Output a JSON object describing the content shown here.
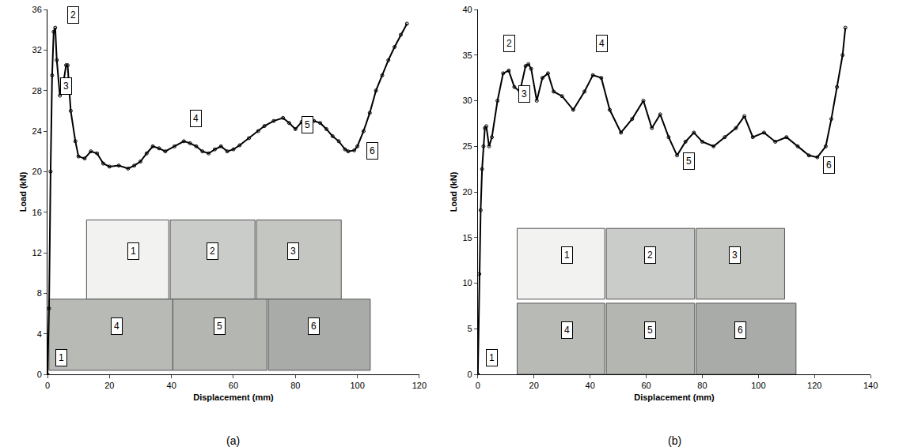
{
  "chart_data": [
    {
      "type": "line",
      "caption": "(a)",
      "x_label": "Displacement (mm)",
      "y_label": "Load (kN)",
      "color": "#000000",
      "marker": "circle",
      "line_style": "solid",
      "grid": false,
      "x": [
        0,
        0.5,
        1,
        1.5,
        2,
        2.5,
        3,
        4,
        5,
        6,
        6.5,
        7.5,
        9,
        10,
        12,
        14,
        16,
        18,
        20,
        23,
        26,
        28,
        30,
        32,
        34,
        36,
        38,
        41,
        44,
        46,
        48,
        50,
        52,
        54,
        56,
        58,
        60,
        62,
        65,
        68,
        70,
        73,
        76,
        78,
        80,
        82,
        84,
        86,
        88,
        90,
        92,
        94,
        96,
        97,
        99,
        100,
        102,
        104,
        106,
        108,
        110,
        112,
        114,
        116
      ],
      "values": [
        0,
        6.5,
        20,
        29.5,
        33.8,
        34.2,
        31,
        27.5,
        28.5,
        30.5,
        30.5,
        26,
        23,
        21.5,
        21.3,
        22,
        21.8,
        20.8,
        20.5,
        20.6,
        20.3,
        20.6,
        21,
        21.8,
        22.5,
        22.3,
        22,
        22.5,
        23,
        22.8,
        22.5,
        22,
        21.8,
        22.2,
        22.5,
        22,
        22.2,
        22.6,
        23.3,
        24,
        24.5,
        25,
        25.3,
        24.8,
        24.2,
        24.9,
        25.2,
        25,
        24.8,
        24.2,
        23.5,
        23,
        22.2,
        22,
        22.1,
        22.5,
        24,
        25.8,
        28,
        29.5,
        31,
        32.3,
        33.5,
        34.6
      ],
      "xlim": [
        0,
        120
      ],
      "xticks": [
        0,
        20,
        40,
        60,
        80,
        100,
        120
      ],
      "ylim": [
        0,
        36
      ],
      "yticks": [
        0,
        4,
        8,
        12,
        16,
        20,
        24,
        28,
        32,
        36
      ],
      "annotations": [
        {
          "text": "1",
          "x": 2.5,
          "y": 0.8
        },
        {
          "text": "2",
          "x": 6.5,
          "y": 34.6
        },
        {
          "text": "3",
          "x": 4,
          "y": 27.6
        },
        {
          "text": "4",
          "x": 46,
          "y": 24.4
        },
        {
          "text": "5",
          "x": 82,
          "y": 23.8
        },
        {
          "text": "6",
          "x": 103,
          "y": 21.2
        }
      ],
      "photo_labels": [
        "1",
        "2",
        "3",
        "4",
        "5",
        "6"
      ]
    },
    {
      "type": "line",
      "caption": "(b)",
      "x_label": "Displacement (mm)",
      "y_label": "Load (kN)",
      "color": "#000000",
      "marker": "circle",
      "line_style": "solid",
      "grid": false,
      "x": [
        0,
        0.5,
        1,
        1.5,
        2,
        2.5,
        3,
        4,
        5,
        7,
        9,
        11,
        13,
        15,
        17,
        18,
        19,
        21,
        23,
        25,
        27,
        30,
        34,
        38,
        41,
        44,
        47,
        51,
        55,
        59,
        62,
        65,
        68,
        71,
        74,
        77,
        80,
        84,
        88,
        92,
        95,
        98,
        102,
        106,
        110,
        114,
        118,
        121,
        124,
        126,
        128,
        130,
        131
      ],
      "values": [
        0,
        11,
        18,
        22.5,
        25,
        27,
        27.2,
        25,
        26,
        30,
        33,
        33.3,
        31.5,
        31,
        33.8,
        34,
        33.5,
        30,
        32.5,
        33,
        31,
        30.5,
        29,
        31,
        32.8,
        32.5,
        29,
        26.5,
        28,
        30,
        27,
        28.5,
        26,
        24,
        25.5,
        26.5,
        25.5,
        25,
        26,
        27,
        28.3,
        26,
        26.5,
        25.5,
        26,
        25,
        24,
        23.8,
        25,
        28,
        31.5,
        35,
        38
      ],
      "xlim": [
        0,
        140
      ],
      "xticks": [
        0,
        20,
        40,
        60,
        80,
        100,
        120,
        140
      ],
      "ylim": [
        0,
        40
      ],
      "yticks": [
        0,
        5,
        10,
        15,
        20,
        25,
        30,
        35,
        40
      ],
      "annotations": [
        {
          "text": "1",
          "x": 3,
          "y": 0.9
        },
        {
          "text": "2",
          "x": 9,
          "y": 35.3
        },
        {
          "text": "3",
          "x": 14.5,
          "y": 29.8
        },
        {
          "text": "4",
          "x": 42,
          "y": 35.3
        },
        {
          "text": "5",
          "x": 73,
          "y": 22.4
        },
        {
          "text": "6",
          "x": 123,
          "y": 22
        }
      ],
      "photo_labels": [
        "1",
        "2",
        "3",
        "4",
        "5",
        "6"
      ]
    }
  ]
}
